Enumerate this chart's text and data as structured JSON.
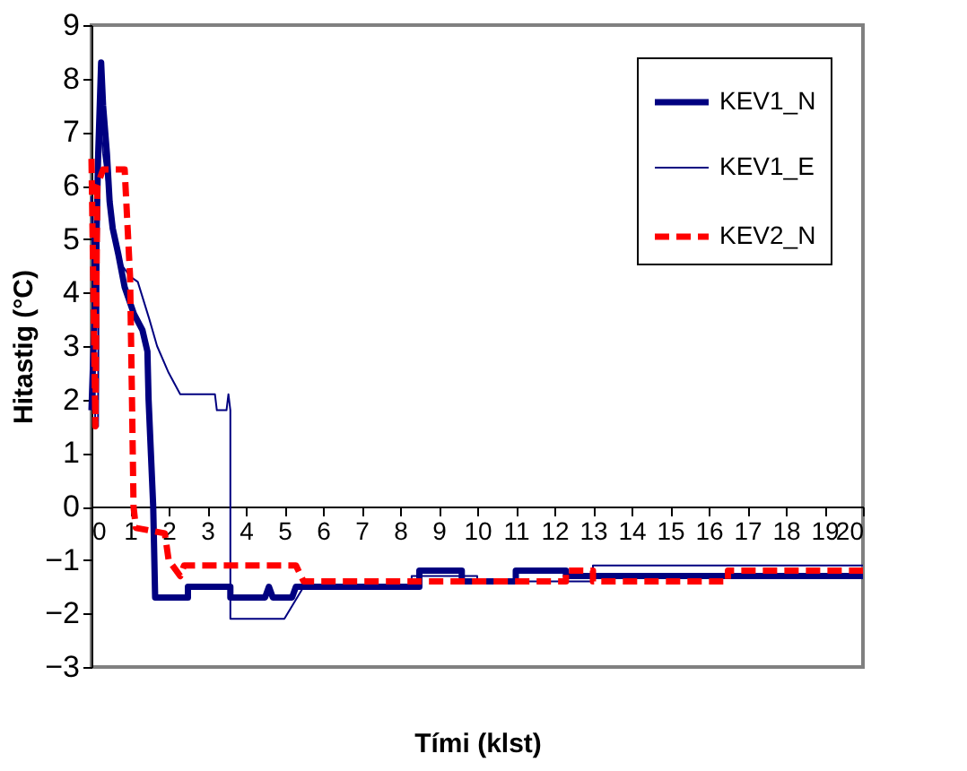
{
  "chart_data": {
    "type": "line",
    "xlabel": "Tími (klst)",
    "ylabel": "Hitastig (°C)",
    "xlim": [
      0,
      20
    ],
    "ylim": [
      -3,
      9
    ],
    "xticks": [
      0,
      1,
      2,
      3,
      4,
      5,
      6,
      7,
      8,
      9,
      10,
      11,
      12,
      13,
      14,
      15,
      16,
      17,
      18,
      19,
      20
    ],
    "yticks": [
      -3,
      -2,
      -1,
      0,
      1,
      2,
      3,
      4,
      5,
      6,
      7,
      8,
      9
    ],
    "grid": false,
    "legend": "top right",
    "marker": "none",
    "series": [
      {
        "name": "KEV1_N",
        "color": "#000080",
        "line_style": "solid",
        "x": [
          0.0,
          0.1,
          0.17,
          0.25,
          0.3,
          0.4,
          0.47,
          0.55,
          0.7,
          0.86,
          1.1,
          1.32,
          1.45,
          1.48,
          1.6,
          1.65,
          2.5,
          2.5,
          3.6,
          3.6,
          4.5,
          4.6,
          4.7,
          5.2,
          5.3,
          8.5,
          8.5,
          9.6,
          9.6,
          11.0,
          11.0,
          12.3,
          12.3,
          20.0
        ],
        "values": [
          1.8,
          4.0,
          6.5,
          8.3,
          7.5,
          6.6,
          5.7,
          5.2,
          4.7,
          4.1,
          3.6,
          3.3,
          2.9,
          2.0,
          0.0,
          -1.7,
          -1.7,
          -1.5,
          -1.5,
          -1.7,
          -1.7,
          -1.5,
          -1.7,
          -1.7,
          -1.5,
          -1.5,
          -1.2,
          -1.2,
          -1.4,
          -1.4,
          -1.2,
          -1.2,
          -1.3,
          -1.3
        ]
      },
      {
        "name": "KEV1_E",
        "color": "#000080",
        "line_style": "solid",
        "x": [
          0.0,
          0.1,
          0.17,
          0.2,
          0.3,
          0.5,
          0.8,
          1.0,
          1.2,
          1.5,
          1.7,
          2.0,
          2.3,
          3.2,
          3.25,
          3.5,
          3.55,
          3.6,
          3.6,
          5.0,
          5.5,
          8.3,
          8.3,
          10.0,
          10.0,
          13.0,
          13.0,
          20.0
        ],
        "values": [
          5.8,
          1.5,
          1.5,
          7.5,
          6.6,
          5.5,
          4.5,
          4.3,
          4.2,
          3.5,
          3.0,
          2.5,
          2.1,
          2.1,
          1.8,
          1.8,
          2.1,
          1.8,
          -2.1,
          -2.1,
          -1.5,
          -1.5,
          -1.3,
          -1.3,
          -1.4,
          -1.4,
          -1.1,
          -1.1
        ]
      },
      {
        "name": "KEV2_N",
        "color": "#ff0000",
        "line_style": "dashed",
        "x": [
          0.0,
          0.1,
          0.15,
          0.3,
          0.86,
          1.0,
          1.05,
          1.09,
          1.15,
          1.9,
          2.0,
          2.3,
          2.4,
          5.3,
          5.5,
          12.3,
          12.3,
          13.0,
          13.0,
          16.5,
          16.5,
          20.0
        ],
        "values": [
          6.5,
          1.5,
          6.0,
          6.3,
          6.3,
          4.3,
          2.0,
          0.0,
          -0.4,
          -0.5,
          -1.0,
          -1.3,
          -1.1,
          -1.1,
          -1.4,
          -1.4,
          -1.2,
          -1.2,
          -1.4,
          -1.4,
          -1.2,
          -1.2
        ]
      }
    ]
  }
}
